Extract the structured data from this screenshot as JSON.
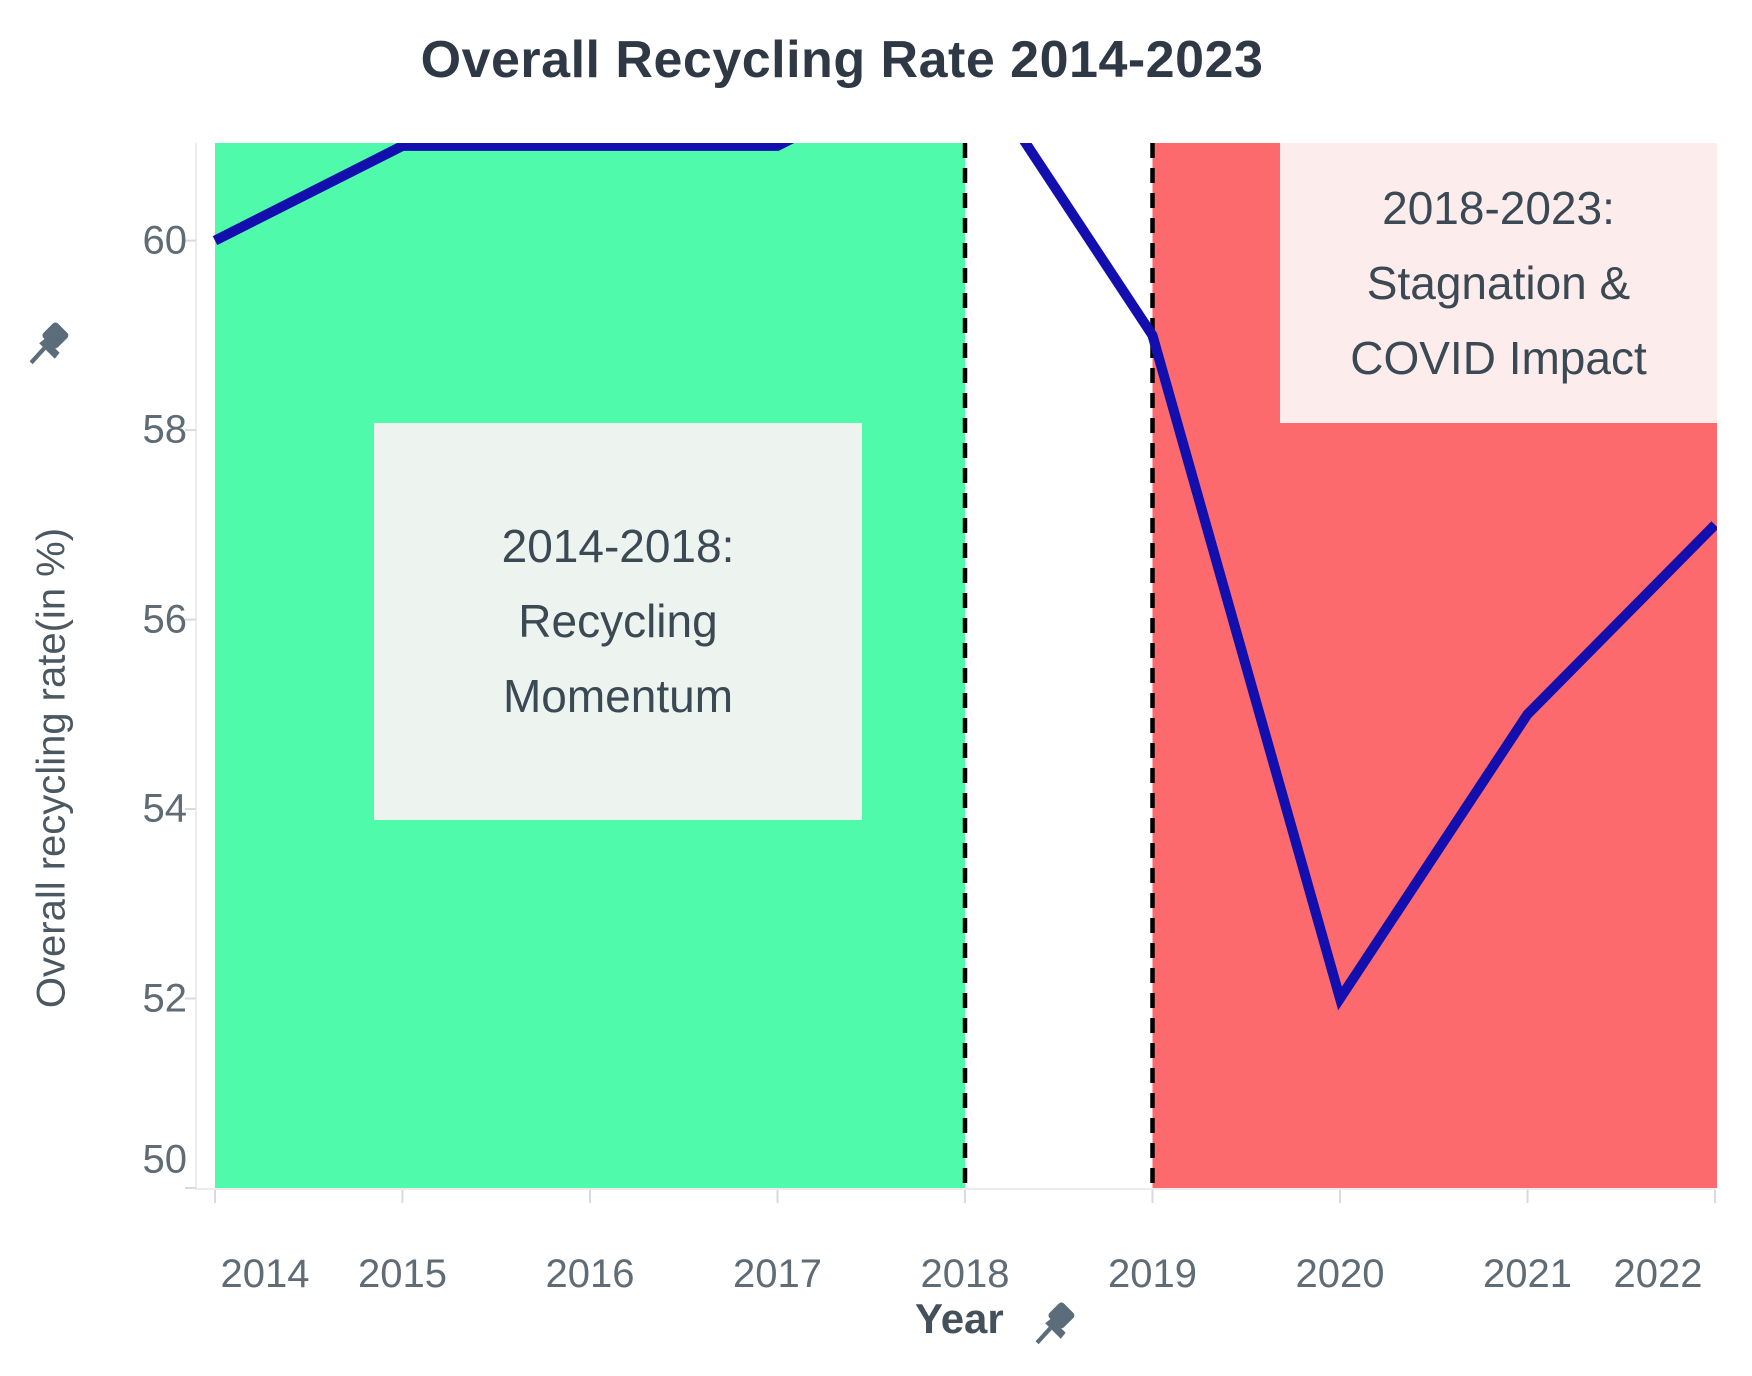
{
  "chart_data": {
    "type": "line",
    "title": "Overall Recycling Rate 2014-2023",
    "xlabel": "Year",
    "ylabel": "Overall recycling rate(in %)",
    "x": [
      2014,
      2015,
      2016,
      2017,
      2018,
      2019,
      2020,
      2021,
      2022
    ],
    "series": [
      {
        "name": "Overall recycling rate",
        "values": [
          60,
          61,
          61,
          61,
          62,
          59,
          52,
          55,
          57
        ],
        "color": "#130fae"
      }
    ],
    "clipped_points": [
      {
        "x": 2018,
        "reason": "line rises above visible y-axis maximum"
      }
    ],
    "x_ticks": [
      2014,
      2015,
      2016,
      2017,
      2018,
      2019,
      2020,
      2021,
      2022
    ],
    "y_ticks": [
      50,
      52,
      54,
      56,
      58,
      60
    ],
    "xlim": [
      2013.9,
      2022.03
    ],
    "ylim": [
      49.7,
      61.03
    ],
    "grid": false,
    "legend_position": "none",
    "regions": [
      {
        "name": "recycling-momentum-band",
        "x_start": 2014,
        "x_end": 2018,
        "color": "#4ffbab"
      },
      {
        "name": "stagnation-covid-band",
        "x_start": 2019,
        "x_end": 2022.03,
        "color": "#fc6a6d"
      }
    ],
    "reference_lines": [
      {
        "x": 2018,
        "style": "dashed",
        "color": "#000000"
      },
      {
        "x": 2019,
        "style": "dashed",
        "color": "#000000"
      }
    ],
    "annotations": [
      {
        "lines": [
          "2014-2018:",
          "Recycling",
          "Momentum"
        ],
        "background": "#edf3ee"
      },
      {
        "lines": [
          "2018-2023:",
          "Stagnation &",
          "COVID Impact"
        ],
        "background": "#fdecec"
      }
    ],
    "axis_pins": {
      "y_axis": "pushpin",
      "x_axis": "pushpin"
    },
    "colors": {
      "line": "#130fae",
      "green_band": "#4ffbab",
      "red_band": "#fc6a6d",
      "reference_line": "#000000",
      "tick_text": "#5f6b75",
      "title_text": "#2e3945",
      "pin": "#5b6c7a"
    }
  }
}
